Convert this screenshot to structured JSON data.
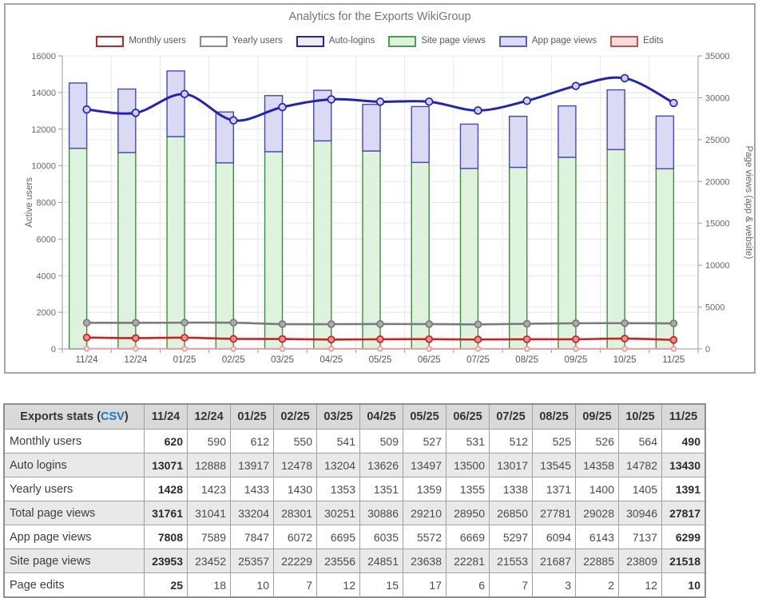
{
  "chart_data": {
    "type": "combo-bar-line",
    "title": "Analytics for the Exports WikiGroup",
    "categories": [
      "11/24",
      "12/24",
      "01/25",
      "02/25",
      "03/25",
      "04/25",
      "05/25",
      "06/25",
      "07/25",
      "08/25",
      "09/25",
      "10/25",
      "11/25"
    ],
    "axes": {
      "left": {
        "title": "Active users",
        "min": 0,
        "max": 16000,
        "step": 2000
      },
      "right": {
        "title": "Page views (app & website)",
        "min": 0,
        "max": 35000,
        "step": 5000
      }
    },
    "grid": true,
    "legend_position": "top",
    "legend": [
      {
        "label": "Monthly users",
        "fill": "#ffffff",
        "border": "#cc2222"
      },
      {
        "label": "Yearly users",
        "fill": "#ffffff",
        "border": "#8a8a8a"
      },
      {
        "label": "Auto-logins",
        "fill": "#ededfa",
        "border": "#2323b8"
      },
      {
        "label": "Site page views",
        "fill": "#ddf3dd",
        "border": "#4ba04b"
      },
      {
        "label": "App page views",
        "fill": "#dcdcf6",
        "border": "#5b5bce"
      },
      {
        "label": "Edits",
        "fill": "#f8dbdb",
        "border": "#cc5252"
      }
    ],
    "series": [
      {
        "name": "Monthly users",
        "type": "line",
        "axis": "left",
        "z": 2,
        "color": "#cc2020",
        "marker_fill": "#ea8e8e",
        "marker_r": 4,
        "width": 2.6,
        "values": [
          620,
          590,
          612,
          550,
          541,
          509,
          527,
          531,
          512,
          525,
          526,
          564,
          490
        ]
      },
      {
        "name": "Yearly users",
        "type": "line",
        "axis": "left",
        "z": 1,
        "color": "#7a7a7a",
        "marker_fill": "#ababab",
        "marker_r": 4,
        "width": 2.6,
        "values": [
          1428,
          1423,
          1433,
          1430,
          1353,
          1351,
          1359,
          1355,
          1338,
          1371,
          1400,
          1405,
          1391
        ]
      },
      {
        "name": "Auto-logins",
        "type": "line",
        "axis": "left",
        "z": 3,
        "color": "#2222b8",
        "marker_fill": "#cfcff2",
        "marker_r": 4.4,
        "width": 3,
        "values": [
          13071,
          12888,
          13917,
          12478,
          13204,
          13626,
          13497,
          13500,
          13017,
          13545,
          14358,
          14782,
          13430
        ]
      },
      {
        "name": "Site page views",
        "type": "bar",
        "axis": "right",
        "fill": "#def3de",
        "stroke": "#3e8c3e",
        "values": [
          23953,
          23452,
          25357,
          22229,
          23556,
          24851,
          23638,
          22281,
          21553,
          21687,
          22885,
          23809,
          21518
        ]
      },
      {
        "name": "App page views",
        "type": "bar",
        "axis": "right",
        "fill": "#dadaf5",
        "stroke": "#4646ba",
        "values": [
          7808,
          7589,
          7847,
          6072,
          6695,
          6035,
          5572,
          6669,
          5297,
          6094,
          6143,
          7137,
          6299
        ]
      },
      {
        "name": "Edits",
        "type": "line",
        "axis": "right",
        "z": 0,
        "color": "#e4a0a0",
        "marker_fill": "#f8dede",
        "marker_r": 3,
        "width": 2,
        "values": [
          25,
          18,
          10,
          7,
          12,
          15,
          17,
          6,
          7,
          3,
          2,
          12,
          10
        ]
      }
    ]
  },
  "table": {
    "title": "Exports stats",
    "paren_open": " (",
    "csv_label": "CSV",
    "paren_close": ")",
    "columns": [
      "11/24",
      "12/24",
      "01/25",
      "02/25",
      "03/25",
      "04/25",
      "05/25",
      "06/25",
      "07/25",
      "08/25",
      "09/25",
      "10/25",
      "11/25"
    ],
    "rows": [
      {
        "label": "Monthly users",
        "values": [
          620,
          590,
          612,
          550,
          541,
          509,
          527,
          531,
          512,
          525,
          526,
          564,
          490
        ]
      },
      {
        "label": "Auto logins",
        "values": [
          13071,
          12888,
          13917,
          12478,
          13204,
          13626,
          13497,
          13500,
          13017,
          13545,
          14358,
          14782,
          13430
        ]
      },
      {
        "label": "Yearly users",
        "values": [
          1428,
          1423,
          1433,
          1430,
          1353,
          1351,
          1359,
          1355,
          1338,
          1371,
          1400,
          1405,
          1391
        ]
      },
      {
        "label": "Total page views",
        "values": [
          31761,
          31041,
          33204,
          28301,
          30251,
          30886,
          29210,
          28950,
          26850,
          27781,
          29028,
          30946,
          27817
        ]
      },
      {
        "label": "App page views",
        "values": [
          7808,
          7589,
          7847,
          6072,
          6695,
          6035,
          5572,
          6669,
          5297,
          6094,
          6143,
          7137,
          6299
        ]
      },
      {
        "label": "Site page views",
        "values": [
          23953,
          23452,
          25357,
          22229,
          23556,
          24851,
          23638,
          22281,
          21553,
          21687,
          22885,
          23809,
          21518
        ]
      },
      {
        "label": "Page edits",
        "values": [
          25,
          18,
          10,
          7,
          12,
          15,
          17,
          6,
          7,
          3,
          2,
          12,
          10
        ]
      }
    ]
  }
}
